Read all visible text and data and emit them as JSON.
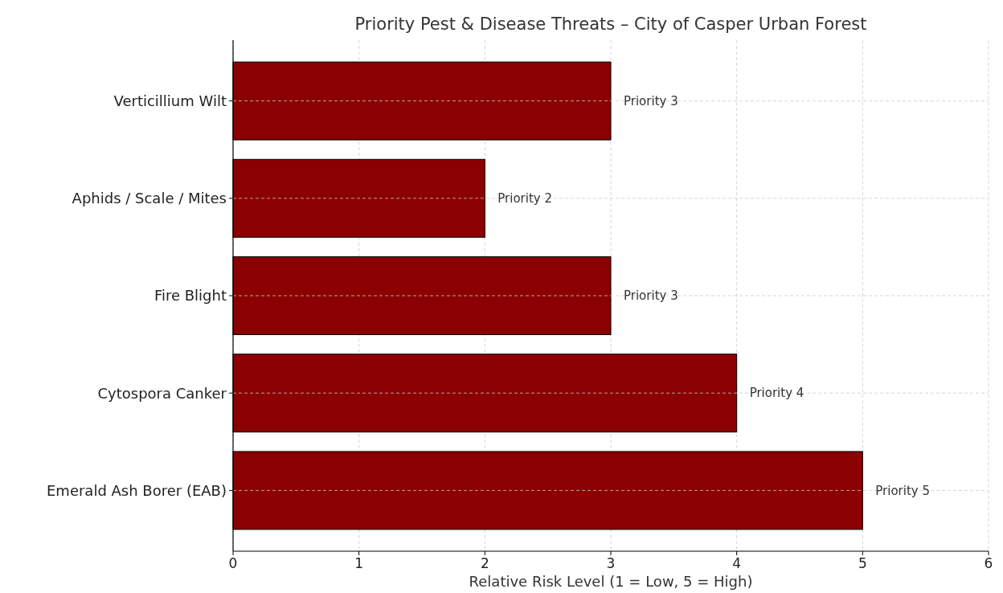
{
  "chart_data": {
    "type": "bar",
    "orientation": "horizontal",
    "title": "Priority Pest & Disease Threats – City of Casper Urban Forest",
    "xlabel": "Relative Risk Level (1 = Low, 5 = High)",
    "categories": [
      "Verticillium Wilt",
      "Aphids / Scale / Mites",
      "Fire Blight",
      "Cytospora Canker",
      "Emerald Ash Borer (EAB)"
    ],
    "values": [
      3,
      2,
      3,
      4,
      5
    ],
    "value_labels": [
      "Priority 3",
      "Priority 2",
      "Priority 3",
      "Priority 4",
      "Priority 5"
    ],
    "color": "#8b0000",
    "xlim": [
      0,
      6
    ],
    "xticks": [
      0,
      1,
      2,
      3,
      4,
      5,
      6
    ],
    "grid": true
  }
}
